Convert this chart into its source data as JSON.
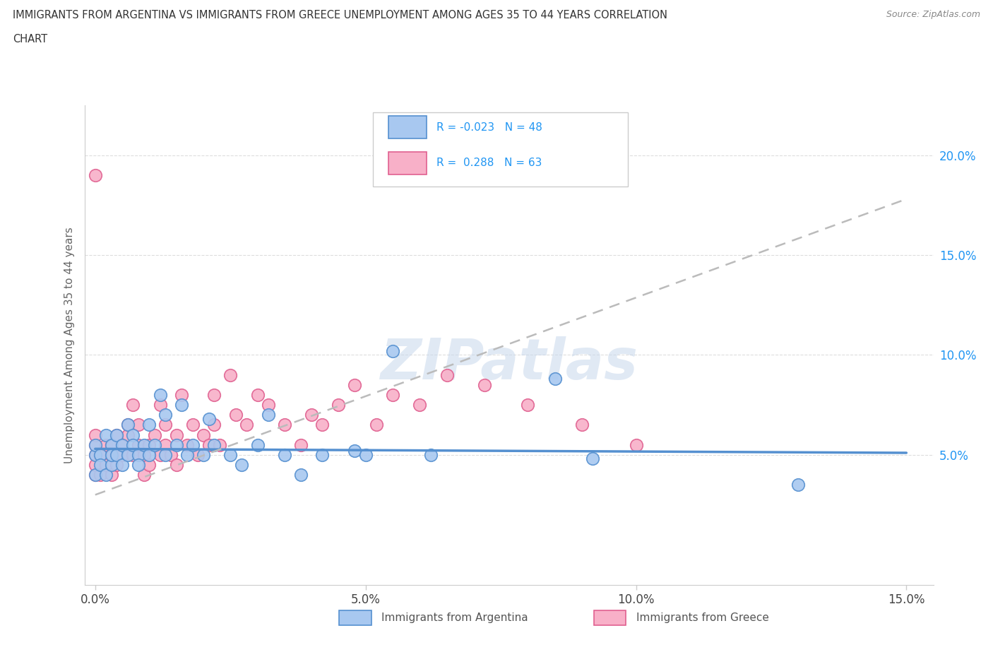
{
  "title_line1": "IMMIGRANTS FROM ARGENTINA VS IMMIGRANTS FROM GREECE UNEMPLOYMENT AMONG AGES 35 TO 44 YEARS CORRELATION",
  "title_line2": "CHART",
  "source_text": "Source: ZipAtlas.com",
  "ylabel": "Unemployment Among Ages 35 to 44 years",
  "xlim": [
    -0.002,
    0.155
  ],
  "ylim": [
    -0.015,
    0.225
  ],
  "xticks": [
    0.0,
    0.05,
    0.1,
    0.15
  ],
  "xtick_labels": [
    "0.0%",
    "5.0%",
    "10.0%",
    "15.0%"
  ],
  "ytick_vals": [
    0.05,
    0.1,
    0.15,
    0.2
  ],
  "ytick_labels": [
    "5.0%",
    "10.0%",
    "15.0%",
    "20.0%"
  ],
  "argentina_color": "#a8c8f0",
  "argentina_edge": "#5590d0",
  "greece_color": "#f8b0c8",
  "greece_edge": "#e06090",
  "legend_color": "#2196F3",
  "watermark": "ZIPatlas",
  "argentina_R": -0.023,
  "argentina_N": 48,
  "greece_R": 0.288,
  "greece_N": 63,
  "argentina_scatter_x": [
    0.0,
    0.0,
    0.0,
    0.001,
    0.001,
    0.002,
    0.002,
    0.003,
    0.003,
    0.003,
    0.004,
    0.004,
    0.005,
    0.005,
    0.006,
    0.006,
    0.007,
    0.007,
    0.008,
    0.008,
    0.009,
    0.01,
    0.01,
    0.011,
    0.012,
    0.013,
    0.013,
    0.015,
    0.016,
    0.017,
    0.018,
    0.02,
    0.021,
    0.022,
    0.025,
    0.027,
    0.03,
    0.032,
    0.035,
    0.038,
    0.042,
    0.048,
    0.05,
    0.055,
    0.062,
    0.085,
    0.092,
    0.13
  ],
  "argentina_scatter_y": [
    0.05,
    0.04,
    0.055,
    0.05,
    0.045,
    0.06,
    0.04,
    0.055,
    0.045,
    0.05,
    0.06,
    0.05,
    0.055,
    0.045,
    0.065,
    0.05,
    0.06,
    0.055,
    0.05,
    0.045,
    0.055,
    0.065,
    0.05,
    0.055,
    0.08,
    0.07,
    0.05,
    0.055,
    0.075,
    0.05,
    0.055,
    0.05,
    0.068,
    0.055,
    0.05,
    0.045,
    0.055,
    0.07,
    0.05,
    0.04,
    0.05,
    0.052,
    0.05,
    0.102,
    0.05,
    0.088,
    0.048,
    0.035
  ],
  "greece_scatter_x": [
    0.0,
    0.0,
    0.0,
    0.0,
    0.0,
    0.0,
    0.001,
    0.001,
    0.002,
    0.002,
    0.003,
    0.003,
    0.003,
    0.004,
    0.004,
    0.005,
    0.005,
    0.006,
    0.006,
    0.007,
    0.007,
    0.008,
    0.008,
    0.009,
    0.009,
    0.01,
    0.01,
    0.011,
    0.012,
    0.012,
    0.013,
    0.013,
    0.014,
    0.015,
    0.015,
    0.016,
    0.017,
    0.018,
    0.019,
    0.02,
    0.021,
    0.022,
    0.022,
    0.023,
    0.025,
    0.026,
    0.028,
    0.03,
    0.032,
    0.035,
    0.038,
    0.04,
    0.042,
    0.045,
    0.048,
    0.052,
    0.055,
    0.06,
    0.065,
    0.072,
    0.08,
    0.09,
    0.1
  ],
  "greece_scatter_y": [
    0.05,
    0.04,
    0.045,
    0.055,
    0.06,
    0.19,
    0.05,
    0.04,
    0.055,
    0.045,
    0.05,
    0.055,
    0.04,
    0.06,
    0.045,
    0.055,
    0.05,
    0.06,
    0.065,
    0.05,
    0.075,
    0.055,
    0.065,
    0.05,
    0.04,
    0.055,
    0.045,
    0.06,
    0.05,
    0.075,
    0.055,
    0.065,
    0.05,
    0.06,
    0.045,
    0.08,
    0.055,
    0.065,
    0.05,
    0.06,
    0.055,
    0.08,
    0.065,
    0.055,
    0.09,
    0.07,
    0.065,
    0.08,
    0.075,
    0.065,
    0.055,
    0.07,
    0.065,
    0.075,
    0.085,
    0.065,
    0.08,
    0.075,
    0.09,
    0.085,
    0.075,
    0.065,
    0.055
  ]
}
